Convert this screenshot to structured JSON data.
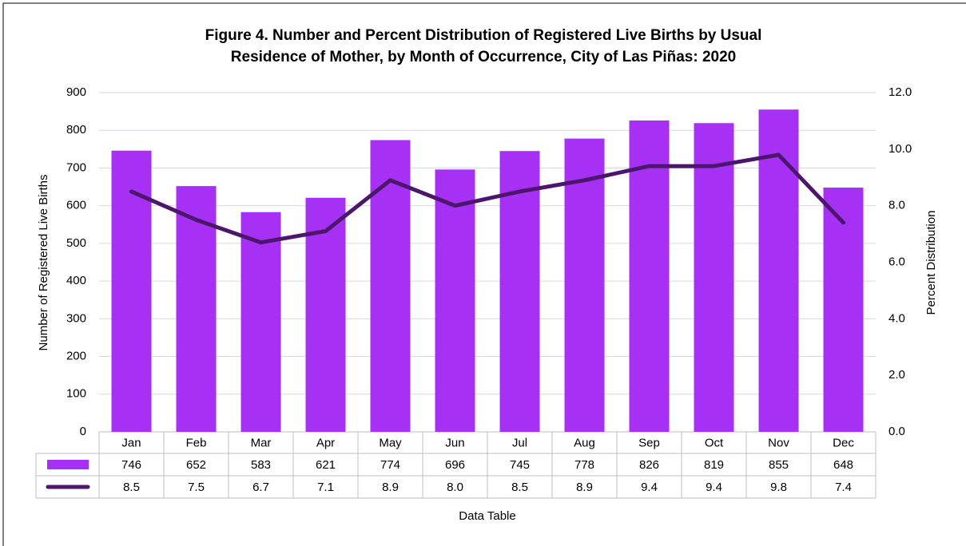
{
  "chart_data": {
    "type": "bar_line",
    "title_lines": [
      "Figure 4. Number and Percent Distribution of Registered Live Births by Usual",
      "Residence of Mother, by Month of Occurrence, City of Las Piñas: 2020"
    ],
    "y_label": "Number of Registered Live Births",
    "y2_label": "Percent Distribution",
    "table_label": "Data Table",
    "categories": [
      "Jan",
      "Feb",
      "Mar",
      "Apr",
      "May",
      "Jun",
      "Jul",
      "Aug",
      "Sep",
      "Oct",
      "Nov",
      "Dec"
    ],
    "series": [
      {
        "type": "bar",
        "color": "#a631f5",
        "values": [
          746,
          652,
          583,
          621,
          774,
          696,
          745,
          778,
          826,
          819,
          855,
          648
        ]
      },
      {
        "type": "line",
        "axis": "y2",
        "color": "#4b166b",
        "values": [
          8.5,
          7.5,
          6.7,
          7.1,
          8.9,
          8.0,
          8.5,
          8.9,
          9.4,
          9.4,
          9.8,
          7.4
        ],
        "value_labels": [
          "8.5",
          "7.5",
          "6.7",
          "7.1",
          "8.9",
          "8.0",
          "8.5",
          "8.9",
          "9.4",
          "9.4",
          "9.8",
          "7.4"
        ]
      }
    ],
    "ylim": [
      0,
      900
    ],
    "yticks": [
      0,
      100,
      200,
      300,
      400,
      500,
      600,
      700,
      800,
      900
    ],
    "y2lim": [
      0,
      12
    ],
    "y2ticks": [
      {
        "value": 0,
        "label": "0.0"
      },
      {
        "value": 2,
        "label": "2.0"
      },
      {
        "value": 4,
        "label": "4.0"
      },
      {
        "value": 6,
        "label": "6.0"
      },
      {
        "value": 8,
        "label": "8.0"
      },
      {
        "value": 10,
        "label": "10.0"
      },
      {
        "value": 12,
        "label": "12.0"
      }
    ],
    "grid": true
  }
}
